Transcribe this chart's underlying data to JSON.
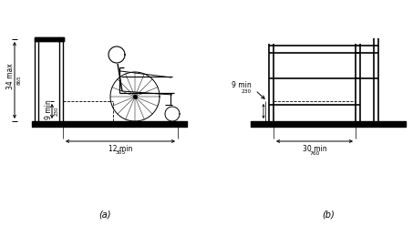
{
  "bg_color": "#ffffff",
  "lc": "#000000",
  "fig_label_a": "(a)",
  "fig_label_b": "(b)",
  "dim_34max": "34 max",
  "dim_865": "865",
  "dim_9min_a": "9 min",
  "dim_230_a": "230",
  "dim_12min": "12 min",
  "dim_305": "305",
  "dim_9min_b": "9 min",
  "dim_230_b": "230",
  "dim_30min": "30 min",
  "dim_760": "760"
}
